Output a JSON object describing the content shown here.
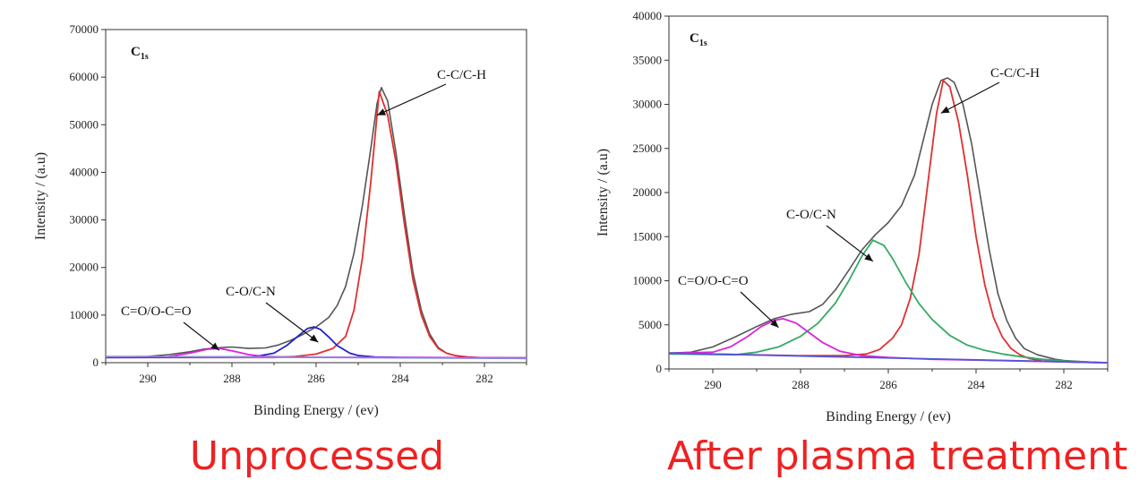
{
  "chart_data": [
    {
      "type": "line",
      "panel_label": "C",
      "panel_label_sub": "1s",
      "caption": "Unprocessed",
      "xlabel": "Binding Energy / (ev)",
      "ylabel": "Intensity / (a.u)",
      "xlim": [
        291,
        281
      ],
      "ylim": [
        0,
        70000
      ],
      "x_ticks": [
        "290",
        "288",
        "286",
        "284",
        "282"
      ],
      "y_ticks": [
        "0",
        "10000",
        "20000",
        "30000",
        "40000",
        "50000",
        "60000",
        "70000"
      ],
      "grid": false,
      "x_reversed": true,
      "series": [
        {
          "color": "#555555",
          "role": "envelope",
          "x": [
            291,
            290,
            289.5,
            289,
            288.7,
            288.4,
            288,
            287.6,
            287.2,
            286.9,
            286.6,
            286.3,
            286,
            285.7,
            285.5,
            285.3,
            285.1,
            284.9,
            284.7,
            284.55,
            284.45,
            284.3,
            284.1,
            283.9,
            283.7,
            283.5,
            283.3,
            283.1,
            282.9,
            282.7,
            282.5,
            282,
            281.5,
            281
          ],
          "y": [
            1200,
            1300,
            1700,
            2300,
            2800,
            3100,
            3300,
            3000,
            3100,
            3700,
            4700,
            6000,
            7500,
            9500,
            12000,
            16000,
            23000,
            33000,
            45000,
            54500,
            57800,
            55000,
            44000,
            31000,
            19000,
            11000,
            6000,
            3200,
            2000,
            1500,
            1200,
            1000,
            950,
            900
          ]
        },
        {
          "color": "#e03030",
          "role": "C-C/C-H",
          "x": [
            291,
            287,
            286.5,
            286,
            285.6,
            285.3,
            285.1,
            284.9,
            284.7,
            284.5,
            284.3,
            284.1,
            283.9,
            283.7,
            283.5,
            283.3,
            283.1,
            282.9,
            282.7,
            282.4,
            282,
            281
          ],
          "y": [
            1100,
            1100,
            1300,
            1800,
            3000,
            5500,
            11000,
            22000,
            38000,
            57000,
            52000,
            42000,
            29000,
            17500,
            10000,
            5500,
            3000,
            2000,
            1500,
            1200,
            1000,
            900
          ]
        },
        {
          "color": "#2222cc",
          "role": "C-O/C-N",
          "x": [
            291,
            287.5,
            287,
            286.7,
            286.4,
            286.2,
            286.05,
            285.9,
            285.7,
            285.5,
            285.2,
            285,
            284.6,
            284,
            281
          ],
          "y": [
            1100,
            1200,
            2000,
            3600,
            5800,
            7200,
            7500,
            7000,
            5400,
            3600,
            2000,
            1500,
            1200,
            1100,
            1000
          ]
        },
        {
          "color": "#dd22dd",
          "role": "C=O/O-C=O",
          "x": [
            291,
            289.5,
            289,
            288.6,
            288.3,
            288,
            287.6,
            287.2,
            286.5,
            281
          ],
          "y": [
            1200,
            1300,
            2000,
            2800,
            3000,
            2500,
            1700,
            1300,
            1150,
            1000
          ]
        },
        {
          "color": "#8888dd",
          "role": "baseline",
          "x": [
            291,
            281
          ],
          "y": [
            1300,
            900
          ]
        }
      ],
      "annotations": [
        {
          "text": "C-C/C-H",
          "arrow_to": [
            284.55,
            52000
          ]
        },
        {
          "text": "C-O/C-N",
          "arrow_to": [
            285.95,
            4300
          ]
        },
        {
          "text": "C=O/O-C=O",
          "arrow_to": [
            288.3,
            2600
          ]
        }
      ]
    },
    {
      "type": "line",
      "panel_label": "C",
      "panel_label_sub": "1s",
      "caption": "After plasma treatment",
      "xlabel": "Binding Energy / (ev)",
      "ylabel": "Intensity / (a.u)",
      "xlim": [
        291,
        281
      ],
      "ylim": [
        0,
        40000
      ],
      "x_ticks": [
        "290",
        "288",
        "286",
        "284",
        "282"
      ],
      "y_ticks": [
        "0",
        "5000",
        "10000",
        "15000",
        "20000",
        "25000",
        "30000",
        "35000",
        "40000"
      ],
      "grid": false,
      "x_reversed": true,
      "series": [
        {
          "color": "#555555",
          "role": "envelope",
          "x": [
            291,
            290.5,
            290,
            289.5,
            289,
            288.6,
            288.2,
            287.8,
            287.5,
            287.2,
            286.9,
            286.6,
            286.3,
            286,
            285.7,
            285.4,
            285.2,
            285,
            284.8,
            284.65,
            284.5,
            284.3,
            284.1,
            283.9,
            283.7,
            283.5,
            283.3,
            283.1,
            282.9,
            282.6,
            282.2,
            282,
            281.5,
            281
          ],
          "y": [
            1800,
            1900,
            2500,
            3600,
            4800,
            5700,
            6200,
            6500,
            7300,
            9000,
            11200,
            13500,
            15200,
            16600,
            18500,
            22000,
            26000,
            30000,
            32700,
            33000,
            32500,
            30000,
            25500,
            19500,
            13500,
            8500,
            5500,
            3500,
            2300,
            1600,
            1100,
            950,
            800,
            700
          ]
        },
        {
          "color": "#e03030",
          "role": "C-C/C-H",
          "x": [
            291,
            288,
            287,
            286.5,
            286.2,
            285.9,
            285.7,
            285.5,
            285.3,
            285.1,
            284.9,
            284.75,
            284.6,
            284.4,
            284.2,
            284,
            283.8,
            283.6,
            283.4,
            283.2,
            283,
            282.8,
            282.5,
            282,
            281
          ],
          "y": [
            1800,
            1500,
            1500,
            1700,
            2200,
            3500,
            5000,
            8000,
            13000,
            21000,
            29000,
            32700,
            32000,
            28000,
            22000,
            15000,
            9500,
            5800,
            3600,
            2300,
            1600,
            1200,
            900,
            800,
            700
          ]
        },
        {
          "color": "#33aa66",
          "role": "C-O/C-N",
          "x": [
            291,
            289.5,
            289,
            288.5,
            288,
            287.6,
            287.2,
            286.9,
            286.6,
            286.35,
            286.1,
            285.9,
            285.6,
            285.3,
            285,
            284.6,
            284.2,
            283.8,
            283.4,
            283,
            282.5,
            282,
            281
          ],
          "y": [
            1700,
            1600,
            1900,
            2500,
            3700,
            5200,
            7500,
            10000,
            12800,
            14600,
            14000,
            12500,
            9800,
            7400,
            5600,
            3800,
            2700,
            2100,
            1700,
            1400,
            1100,
            900,
            700
          ]
        },
        {
          "color": "#dd22dd",
          "role": "C=O/O-C=O",
          "x": [
            291,
            290,
            289.6,
            289.2,
            288.9,
            288.6,
            288.4,
            288.1,
            287.8,
            287.5,
            287.1,
            286.6,
            286,
            285,
            284,
            282,
            281
          ],
          "y": [
            1800,
            1900,
            2500,
            3700,
            4800,
            5500,
            5700,
            5200,
            4100,
            3000,
            2000,
            1500,
            1300,
            1100,
            1000,
            800,
            700
          ]
        },
        {
          "color": "#5555dd",
          "role": "baseline",
          "x": [
            291,
            281
          ],
          "y": [
            1800,
            700
          ]
        }
      ],
      "annotations": [
        {
          "text": "C-C/C-H",
          "arrow_to": [
            284.8,
            29000
          ]
        },
        {
          "text": "C-O/C-N",
          "arrow_to": [
            286.35,
            12200
          ]
        },
        {
          "text": "C=O/O-C=O",
          "arrow_to": [
            288.5,
            4700
          ]
        }
      ]
    }
  ]
}
